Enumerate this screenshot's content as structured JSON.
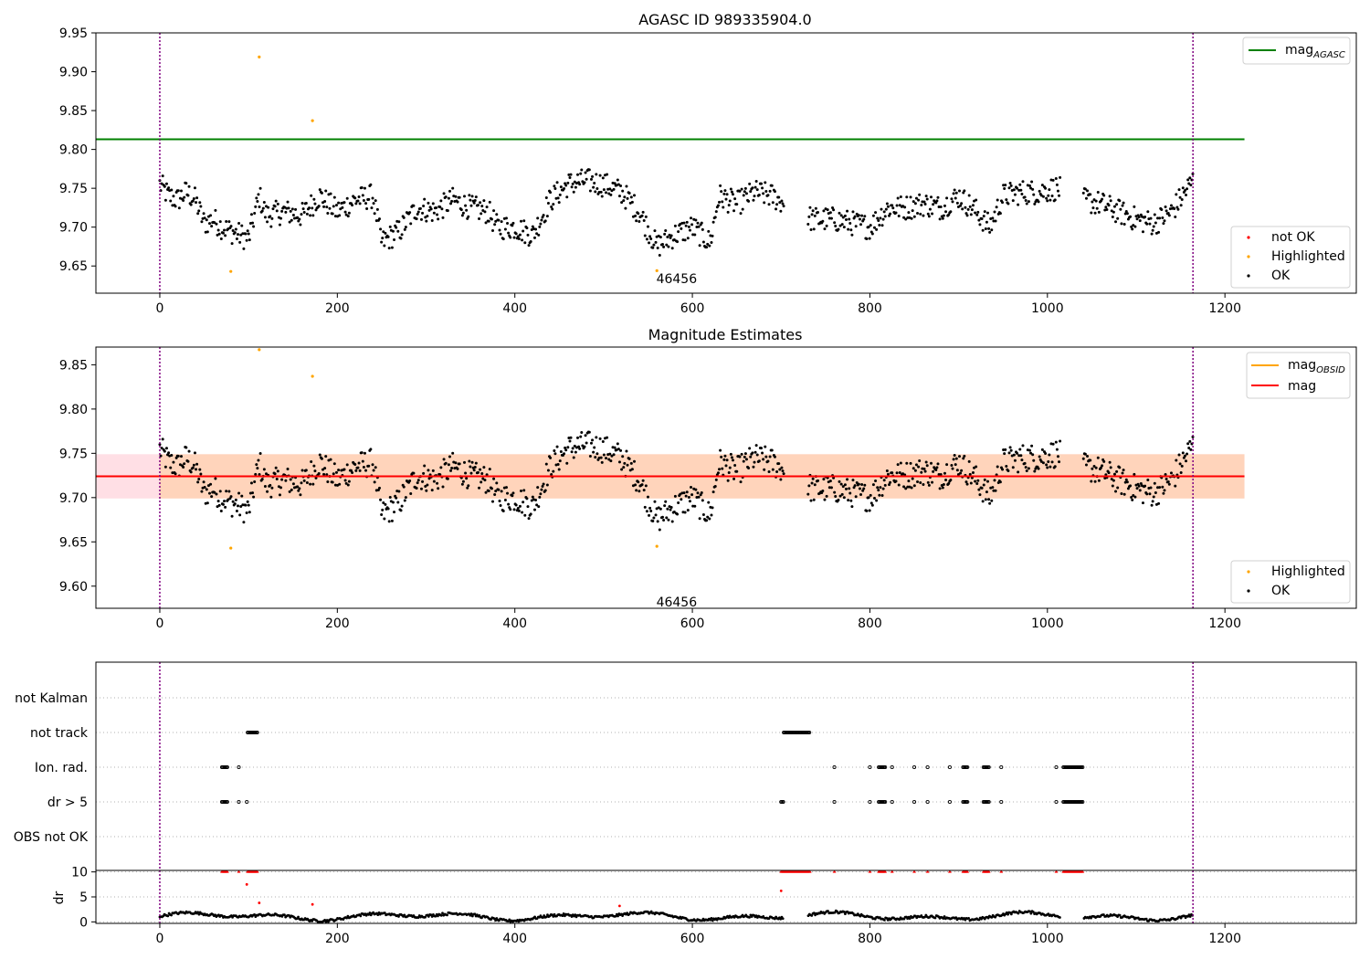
{
  "colors": {
    "ok": "#000000",
    "highlighted": "#ffa500",
    "not_ok": "#ff0000",
    "agasc_line": "#008000",
    "obsid_line": "#ffa500",
    "mag_line": "#ff0000",
    "band_fill": "#ffc0cb",
    "vline": "#800080"
  },
  "chart_data": [
    {
      "type": "scatter",
      "title": "AGASC ID 989335904.0",
      "xlim": [
        -72,
        1348
      ],
      "ylim": [
        9.615,
        9.95
      ],
      "xticks": [
        "0",
        "200",
        "400",
        "600",
        "800",
        "1000",
        "1200"
      ],
      "yticks": [
        "9.65",
        "9.70",
        "9.75",
        "9.80",
        "9.85",
        "9.90",
        "9.95"
      ],
      "hline": {
        "name": "mag_{AGASC}",
        "y": 9.813,
        "x": [
          -72,
          1222
        ]
      },
      "vlines": [
        0,
        1164
      ],
      "highlighted": [
        [
          80,
          9.643
        ],
        [
          112,
          9.919
        ],
        [
          172,
          9.837
        ],
        [
          560,
          9.644
        ]
      ],
      "annotation": {
        "text": "46456",
        "x": 582,
        "y": 9.63
      },
      "legend": {
        "upper": [
          "mag_AGASC"
        ],
        "lower": [
          "not OK",
          "Highlighted",
          "OK"
        ],
        "location": "upper-right and lower-right"
      },
      "ok_trend": [
        [
          0,
          9.755
        ],
        [
          10,
          9.74
        ],
        [
          20,
          9.735
        ],
        [
          30,
          9.745
        ],
        [
          40,
          9.735
        ],
        [
          50,
          9.705
        ],
        [
          60,
          9.71
        ],
        [
          70,
          9.7
        ],
        [
          80,
          9.695
        ],
        [
          90,
          9.69
        ],
        [
          100,
          9.685
        ],
        [
          112,
          9.74
        ],
        [
          120,
          9.715
        ],
        [
          140,
          9.72
        ],
        [
          160,
          9.715
        ],
        [
          180,
          9.74
        ],
        [
          200,
          9.72
        ],
        [
          220,
          9.735
        ],
        [
          240,
          9.74
        ],
        [
          250,
          9.68
        ],
        [
          270,
          9.695
        ],
        [
          290,
          9.725
        ],
        [
          310,
          9.72
        ],
        [
          330,
          9.735
        ],
        [
          350,
          9.725
        ],
        [
          370,
          9.72
        ],
        [
          380,
          9.7
        ],
        [
          400,
          9.7
        ],
        [
          420,
          9.69
        ],
        [
          440,
          9.735
        ],
        [
          460,
          9.755
        ],
        [
          480,
          9.76
        ],
        [
          500,
          9.755
        ],
        [
          520,
          9.745
        ],
        [
          540,
          9.72
        ],
        [
          560,
          9.675
        ],
        [
          580,
          9.69
        ],
        [
          600,
          9.7
        ],
        [
          620,
          9.68
        ],
        [
          630,
          9.74
        ],
        [
          650,
          9.73
        ],
        [
          670,
          9.745
        ],
        [
          690,
          9.74
        ],
        [
          735,
          9.71
        ],
        [
          760,
          9.71
        ],
        [
          780,
          9.705
        ],
        [
          800,
          9.7
        ],
        [
          820,
          9.725
        ],
        [
          840,
          9.725
        ],
        [
          860,
          9.73
        ],
        [
          880,
          9.725
        ],
        [
          900,
          9.74
        ],
        [
          920,
          9.72
        ],
        [
          935,
          9.7
        ],
        [
          950,
          9.74
        ],
        [
          970,
          9.745
        ],
        [
          990,
          9.745
        ],
        [
          1010,
          9.75
        ],
        [
          1040,
          9.735
        ],
        [
          1060,
          9.73
        ],
        [
          1080,
          9.72
        ],
        [
          1100,
          9.71
        ],
        [
          1120,
          9.705
        ],
        [
          1140,
          9.72
        ],
        [
          1164,
          9.76
        ]
      ],
      "ok_gaps": [
        [
          703,
          730
        ],
        [
          1015,
          1040
        ]
      ]
    },
    {
      "type": "scatter",
      "title": "Magnitude Estimates",
      "xlim": [
        -72,
        1348
      ],
      "ylim": [
        9.575,
        9.87
      ],
      "xticks": [
        "0",
        "200",
        "400",
        "600",
        "800",
        "1000",
        "1200"
      ],
      "yticks": [
        "9.60",
        "9.65",
        "9.70",
        "9.75",
        "9.80",
        "9.85"
      ],
      "lines": [
        {
          "name": "mag_{OBSID}",
          "y": 9.724
        },
        {
          "name": "mag",
          "y": 9.724
        }
      ],
      "band": [
        9.699,
        9.749
      ],
      "vlines": [
        0,
        1164
      ],
      "highlighted": [
        [
          80,
          9.643
        ],
        [
          112,
          9.867
        ],
        [
          172,
          9.837
        ],
        [
          560,
          9.645
        ]
      ],
      "annotation": {
        "text": "46456",
        "x": 582,
        "y": 9.582
      },
      "legend": {
        "upper": [
          "mag_OBSID",
          "mag"
        ],
        "lower": [
          "Highlighted",
          "OK"
        ],
        "location": "upper-right and lower-right"
      }
    },
    {
      "type": "scatter",
      "title": "",
      "xlim": [
        -72,
        1348
      ],
      "xticks": [
        "0",
        "200",
        "400",
        "600",
        "800",
        "1000",
        "1200"
      ],
      "flag_rows": [
        "not Kalman",
        "not track",
        "Ion. rad.",
        "dr > 5",
        "OBS not OK"
      ],
      "flags": {
        "not track": [
          [
            99,
            111
          ],
          [
            703,
            733
          ]
        ],
        "Ion. rad.": [
          [
            70,
            77
          ],
          [
            89,
            89
          ],
          [
            760,
            760
          ],
          [
            800,
            800
          ],
          [
            810,
            818
          ],
          [
            825,
            825
          ],
          [
            850,
            850
          ],
          [
            865,
            865
          ],
          [
            890,
            890
          ],
          [
            905,
            910
          ],
          [
            928,
            935
          ],
          [
            948,
            948
          ],
          [
            1010,
            1010
          ],
          [
            1018,
            1040
          ]
        ],
        "dr > 5": [
          [
            70,
            77
          ],
          [
            89,
            89
          ],
          [
            98,
            98
          ],
          [
            700,
            703
          ],
          [
            760,
            760
          ],
          [
            800,
            800
          ],
          [
            810,
            818
          ],
          [
            825,
            825
          ],
          [
            850,
            850
          ],
          [
            865,
            865
          ],
          [
            890,
            890
          ],
          [
            905,
            910
          ],
          [
            928,
            935
          ],
          [
            948,
            948
          ],
          [
            1010,
            1010
          ],
          [
            1018,
            1040
          ]
        ]
      },
      "dr_ylabel": "dr",
      "dr_yticks": [
        "0",
        "5",
        "10"
      ],
      "dr_ylim": [
        -0.3,
        10.3
      ],
      "dr_red_capped": [
        [
          70,
          77
        ],
        [
          89,
          89
        ],
        [
          99,
          111
        ],
        [
          700,
          733
        ],
        [
          760,
          760
        ],
        [
          800,
          800
        ],
        [
          810,
          818
        ],
        [
          825,
          825
        ],
        [
          850,
          850
        ],
        [
          865,
          865
        ],
        [
          890,
          890
        ],
        [
          905,
          910
        ],
        [
          928,
          935
        ],
        [
          948,
          948
        ],
        [
          1010,
          1010
        ],
        [
          1018,
          1040
        ]
      ],
      "dr_red_extra": [
        [
          98,
          7.5
        ],
        [
          112,
          3.8
        ],
        [
          172,
          3.5
        ],
        [
          518,
          3.2
        ],
        [
          700,
          6.2
        ]
      ]
    }
  ]
}
